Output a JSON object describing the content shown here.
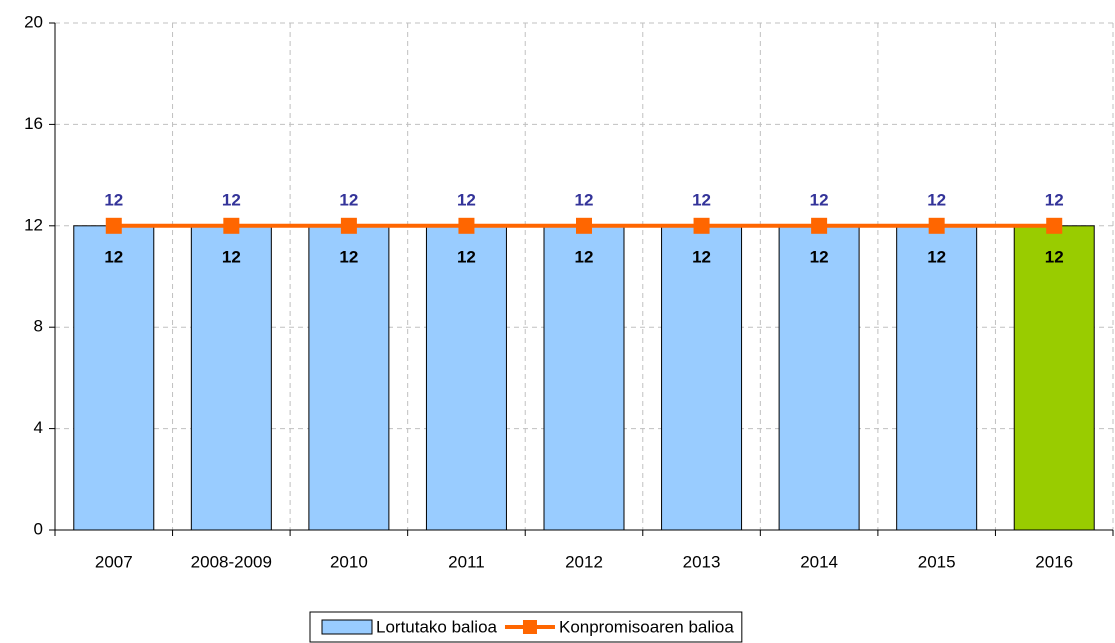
{
  "chart_data": {
    "type": "bar",
    "categories": [
      "2007",
      "2008-2009",
      "2010",
      "2011",
      "2012",
      "2013",
      "2014",
      "2015",
      "2016"
    ],
    "series": [
      {
        "name": "Lortutako balioa",
        "type": "bar",
        "color": "#99ccff",
        "colors": [
          "#99ccff",
          "#99ccff",
          "#99ccff",
          "#99ccff",
          "#99ccff",
          "#99ccff",
          "#99ccff",
          "#99ccff",
          "#99cc00"
        ],
        "values": [
          12,
          12,
          12,
          12,
          12,
          12,
          12,
          12,
          12
        ]
      },
      {
        "name": "Konpromisoaren balioa",
        "type": "line",
        "color": "#ff6600",
        "values": [
          12,
          12,
          12,
          12,
          12,
          12,
          12,
          12,
          12
        ]
      }
    ],
    "ylim": [
      0,
      20
    ],
    "yticks": [
      0,
      4,
      8,
      12,
      16,
      20
    ],
    "grid": true,
    "legend": "bottom"
  }
}
